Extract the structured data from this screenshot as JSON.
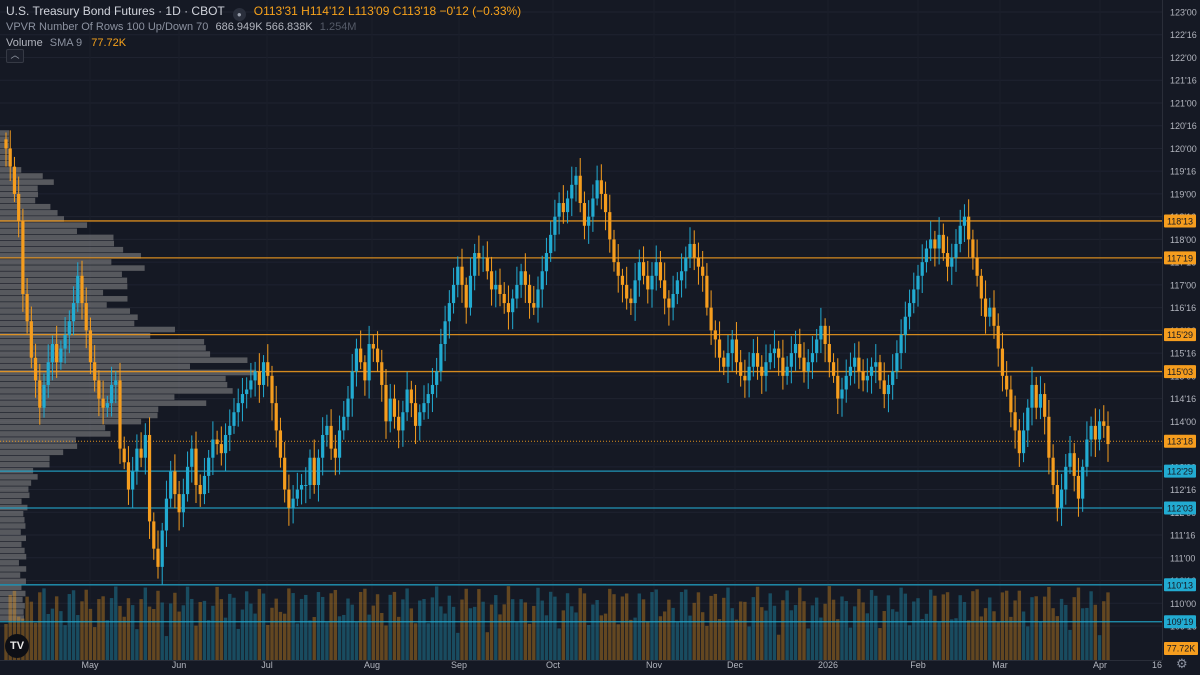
{
  "header": {
    "title": "U.S. Treasury Bond Futures · 1D · CBOT",
    "ohlc": "O113'31  H114'12  L113'09  C113'18  −0'12 (−0.33%)"
  },
  "indicators": {
    "vpvr_label": "VPVR",
    "vpvr_params": "Number Of Rows 100 Up/Down 70",
    "vpvr_values": "686.949K  566.838K",
    "vpvr_total": "1.254M",
    "volume_label": "Volume",
    "volume_sub": "SMA 9",
    "volume_value": "77.72K"
  },
  "logo_text": "TV",
  "colors": {
    "background": "#151924",
    "up": "#22abd1",
    "down": "#f59d1e",
    "hline_orange": "#f59d1e",
    "hline_cyan": "#22abd1",
    "profile": "#8e8e8e"
  },
  "chart_data": {
    "type": "candlestick",
    "y_axis_labels": [
      "123'00",
      "122'16",
      "122'00",
      "121'16",
      "121'00",
      "120'16",
      "120'00",
      "119'16",
      "119'00",
      "118'16",
      "118'00",
      "117'16",
      "117'00",
      "116'16",
      "116'00",
      "115'16",
      "115'00",
      "114'16",
      "114'00",
      "113'16",
      "113'00",
      "112'16",
      "112'00",
      "111'16",
      "111'00",
      "110'16",
      "110'00",
      "109'16"
    ],
    "y_axis_values": [
      123,
      122.5,
      122,
      121.5,
      121,
      120.5,
      120,
      119.5,
      119,
      118.5,
      118,
      117.5,
      117,
      116.5,
      116,
      115.5,
      115,
      114.5,
      114,
      113.5,
      113,
      112.5,
      112,
      111.5,
      111,
      110.5,
      110,
      109.5
    ],
    "x_axis_labels": [
      "May",
      "Jun",
      "Jul",
      "Aug",
      "Sep",
      "Oct",
      "Nov",
      "Dec",
      "2026",
      "Feb",
      "Mar",
      "Apr",
      "16"
    ],
    "price_levels": [
      {
        "label": "118'13",
        "value": 118.406,
        "color": "orange"
      },
      {
        "label": "117'19",
        "value": 117.594,
        "color": "orange"
      },
      {
        "label": "115'29",
        "value": 115.906,
        "color": "orange"
      },
      {
        "label": "115'03",
        "value": 115.094,
        "color": "orange"
      },
      {
        "label": "113'18",
        "value": 113.5625,
        "color": "orange",
        "style": "dotted"
      },
      {
        "label": "112'29",
        "value": 112.906,
        "color": "cyan"
      },
      {
        "label": "112'03",
        "value": 112.094,
        "color": "cyan"
      },
      {
        "label": "110'13",
        "value": 110.406,
        "color": "cyan"
      },
      {
        "label": "109'19",
        "value": 109.594,
        "color": "cyan"
      }
    ],
    "volume_last_label": "77.72K",
    "closes": [
      120.0,
      119.6,
      119.0,
      118.4,
      116.8,
      116.2,
      115.4,
      114.9,
      114.3,
      114.8,
      115.3,
      115.7,
      115.3,
      115.6,
      115.9,
      116.2,
      116.6,
      117.2,
      116.6,
      116.0,
      115.3,
      114.9,
      114.5,
      114.3,
      114.4,
      114.8,
      114.9,
      113.4,
      113.1,
      112.5,
      112.9,
      113.4,
      113.2,
      113.7,
      111.8,
      111.2,
      110.8,
      111.6,
      112.3,
      112.9,
      112.4,
      112.0,
      112.4,
      113.0,
      113.4,
      112.6,
      112.4,
      112.8,
      113.2,
      113.6,
      113.5,
      113.3,
      113.7,
      113.9,
      114.2,
      114.4,
      114.6,
      114.7,
      114.9,
      115.1,
      114.8,
      115.3,
      115.0,
      114.4,
      113.8,
      113.2,
      112.5,
      112.1,
      112.3,
      112.5,
      112.6,
      112.6,
      113.2,
      112.6,
      113.2,
      113.7,
      113.9,
      113.4,
      113.2,
      113.8,
      114.1,
      114.5,
      115.1,
      115.6,
      115.3,
      114.9,
      115.7,
      115.6,
      115.3,
      114.8,
      114.0,
      114.5,
      114.1,
      113.8,
      114.2,
      114.7,
      114.4,
      113.9,
      114.2,
      114.4,
      114.6,
      114.8,
      115.1,
      115.7,
      116.2,
      116.6,
      117.0,
      117.4,
      117.0,
      116.5,
      117.2,
      117.7,
      117.6,
      117.6,
      117.3,
      116.9,
      117.0,
      116.8,
      116.6,
      116.4,
      116.7,
      117.0,
      117.3,
      117.0,
      116.6,
      116.5,
      116.9,
      117.3,
      117.7,
      118.1,
      118.5,
      118.8,
      118.6,
      118.9,
      119.2,
      119.4,
      118.8,
      118.3,
      118.5,
      118.9,
      119.3,
      119.0,
      118.6,
      118.0,
      117.5,
      117.2,
      117.0,
      116.7,
      116.6,
      117.1,
      117.5,
      117.2,
      116.9,
      117.2,
      117.5,
      117.1,
      116.7,
      116.5,
      116.8,
      117.1,
      117.3,
      117.6,
      117.9,
      117.6,
      117.4,
      117.2,
      116.5,
      116.0,
      115.8,
      115.4,
      115.2,
      115.5,
      115.8,
      115.3,
      115.0,
      114.9,
      115.2,
      115.5,
      115.2,
      115.0,
      115.3,
      115.5,
      115.6,
      115.4,
      115.0,
      115.2,
      115.5,
      115.7,
      115.4,
      115.1,
      115.3,
      115.5,
      115.8,
      116.1,
      115.7,
      115.3,
      115.0,
      114.5,
      114.7,
      115.0,
      115.2,
      115.4,
      115.1,
      114.9,
      115.0,
      115.2,
      115.3,
      114.9,
      114.6,
      114.8,
      115.1,
      115.5,
      115.9,
      116.3,
      116.6,
      116.9,
      117.2,
      117.5,
      117.8,
      118.0,
      117.8,
      118.1,
      117.7,
      117.4,
      117.6,
      117.9,
      118.3,
      118.5,
      118.0,
      117.6,
      117.2,
      116.7,
      116.3,
      116.5,
      116.1,
      115.6,
      115.0,
      114.7,
      114.2,
      113.8,
      113.3,
      113.8,
      114.3,
      114.8,
      114.3,
      114.6,
      114.1,
      113.2,
      112.6,
      112.1,
      112.5,
      113.0,
      113.3,
      112.8,
      112.3,
      113.0,
      113.6,
      113.9,
      113.6,
      114.0,
      113.9,
      113.5
    ]
  }
}
